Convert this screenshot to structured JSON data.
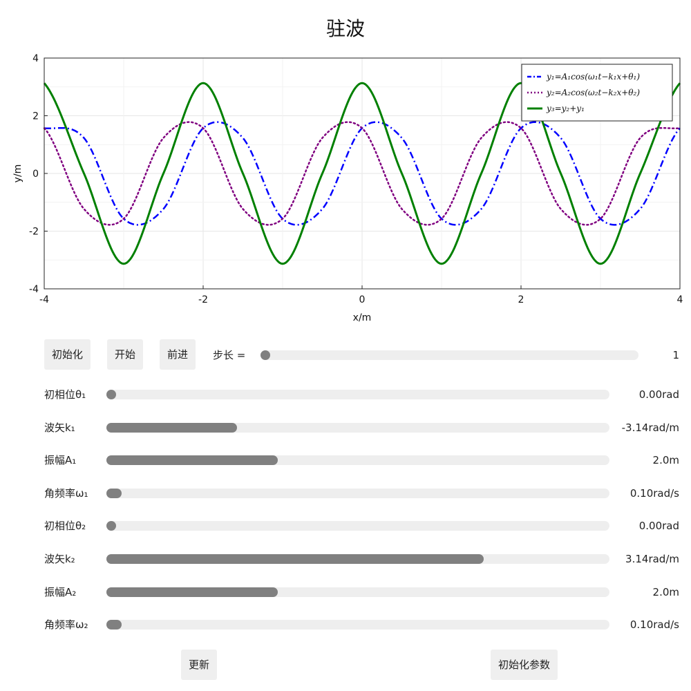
{
  "title": "驻波",
  "chart_data": {
    "type": "line",
    "xlabel": "x/m",
    "ylabel": "y/m",
    "xlim": [
      -4,
      4
    ],
    "ylim": [
      -4,
      4
    ],
    "xticks": [
      -4,
      -2,
      0,
      2,
      4
    ],
    "yticks": [
      -4,
      -2,
      0,
      2,
      4
    ],
    "grid": true,
    "legend_position": "top-right",
    "x": [
      -4.0,
      -3.5,
      -3.0,
      -2.5,
      -2.0,
      -1.5,
      -1.0,
      -0.5,
      0.0,
      0.5,
      1.0,
      1.5,
      2.0,
      2.5,
      3.0,
      3.5,
      4.0
    ],
    "series": [
      {
        "name": "y₁=A₁cos(ω₁t−k₁x+θ₁)",
        "style": "dashdot",
        "color": "#0000ff",
        "values": [
          1.57,
          1.23,
          -1.57,
          -1.23,
          1.57,
          1.23,
          -1.57,
          -1.23,
          1.57,
          1.23,
          -1.57,
          -1.23,
          1.57,
          1.23,
          -1.57,
          -1.23,
          1.57
        ]
      },
      {
        "name": "y₂=A₂cos(ω₂t−k₂x+θ₂)",
        "style": "dotted",
        "color": "#800080",
        "values": [
          1.57,
          -1.23,
          -1.57,
          1.23,
          1.57,
          -1.23,
          -1.57,
          1.23,
          1.57,
          -1.23,
          -1.57,
          1.23,
          1.57,
          -1.23,
          -1.57,
          1.23,
          1.57
        ]
      },
      {
        "name": "y₃=y₂+y₁",
        "style": "solid",
        "color": "#008000",
        "values": [
          3.13,
          0.0,
          -3.13,
          0.0,
          3.13,
          0.0,
          -3.13,
          0.0,
          3.13,
          0.0,
          -3.13,
          0.0,
          3.13,
          0.0,
          -3.13,
          0.0,
          3.13
        ]
      }
    ]
  },
  "controls": {
    "init_label": "初始化",
    "start_label": "开始",
    "forward_label": "前进",
    "step_label": "步长 =",
    "step_value": "1",
    "step_fraction": 0.0,
    "update_label": "更新",
    "reset_params_label": "初始化参数"
  },
  "sliders": [
    {
      "label": "初相位θ₁",
      "value": "0.00rad",
      "fraction": 0.0
    },
    {
      "label": "波矢k₁",
      "value": "-3.14rad/m",
      "fraction": 0.26
    },
    {
      "label": "振幅A₁",
      "value": "2.0m",
      "fraction": 0.34
    },
    {
      "label": "角频率ω₁",
      "value": "0.10rad/s",
      "fraction": 0.03
    },
    {
      "label": "初相位θ₂",
      "value": "0.00rad",
      "fraction": 0.0
    },
    {
      "label": "波矢k₂",
      "value": "3.14rad/m",
      "fraction": 0.75
    },
    {
      "label": "振幅A₂",
      "value": "2.0m",
      "fraction": 0.34
    },
    {
      "label": "角频率ω₂",
      "value": "0.10rad/s",
      "fraction": 0.03
    }
  ]
}
